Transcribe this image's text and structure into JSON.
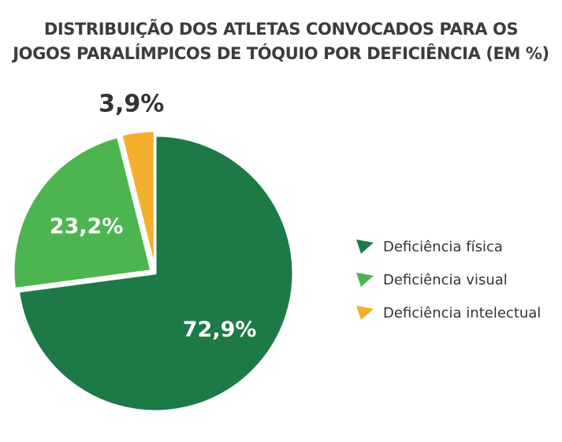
{
  "chart_data": {
    "type": "pie",
    "title_lines": [
      "DISTRIBUIÇÃO DOS ATLETAS CONVOCADOS PARA OS",
      "JOGOS PARALÍMPICOS DE TÓQUIO POR DEFICIÊNCIA (EM %)"
    ],
    "unit": "%",
    "slices": [
      {
        "name": "Deficiência física",
        "value": 72.9,
        "label": "72,9%",
        "color": "#1d7a47",
        "label_color": "#ffffff"
      },
      {
        "name": "Deficiência visual",
        "value": 23.2,
        "label": "23,2%",
        "color": "#4cb550",
        "label_color": "#ffffff"
      },
      {
        "name": "Deficiência intelectual",
        "value": 3.9,
        "label": "3,9%",
        "color": "#f6ae2d",
        "label_color": "#333333"
      }
    ],
    "legend_position": "right"
  }
}
